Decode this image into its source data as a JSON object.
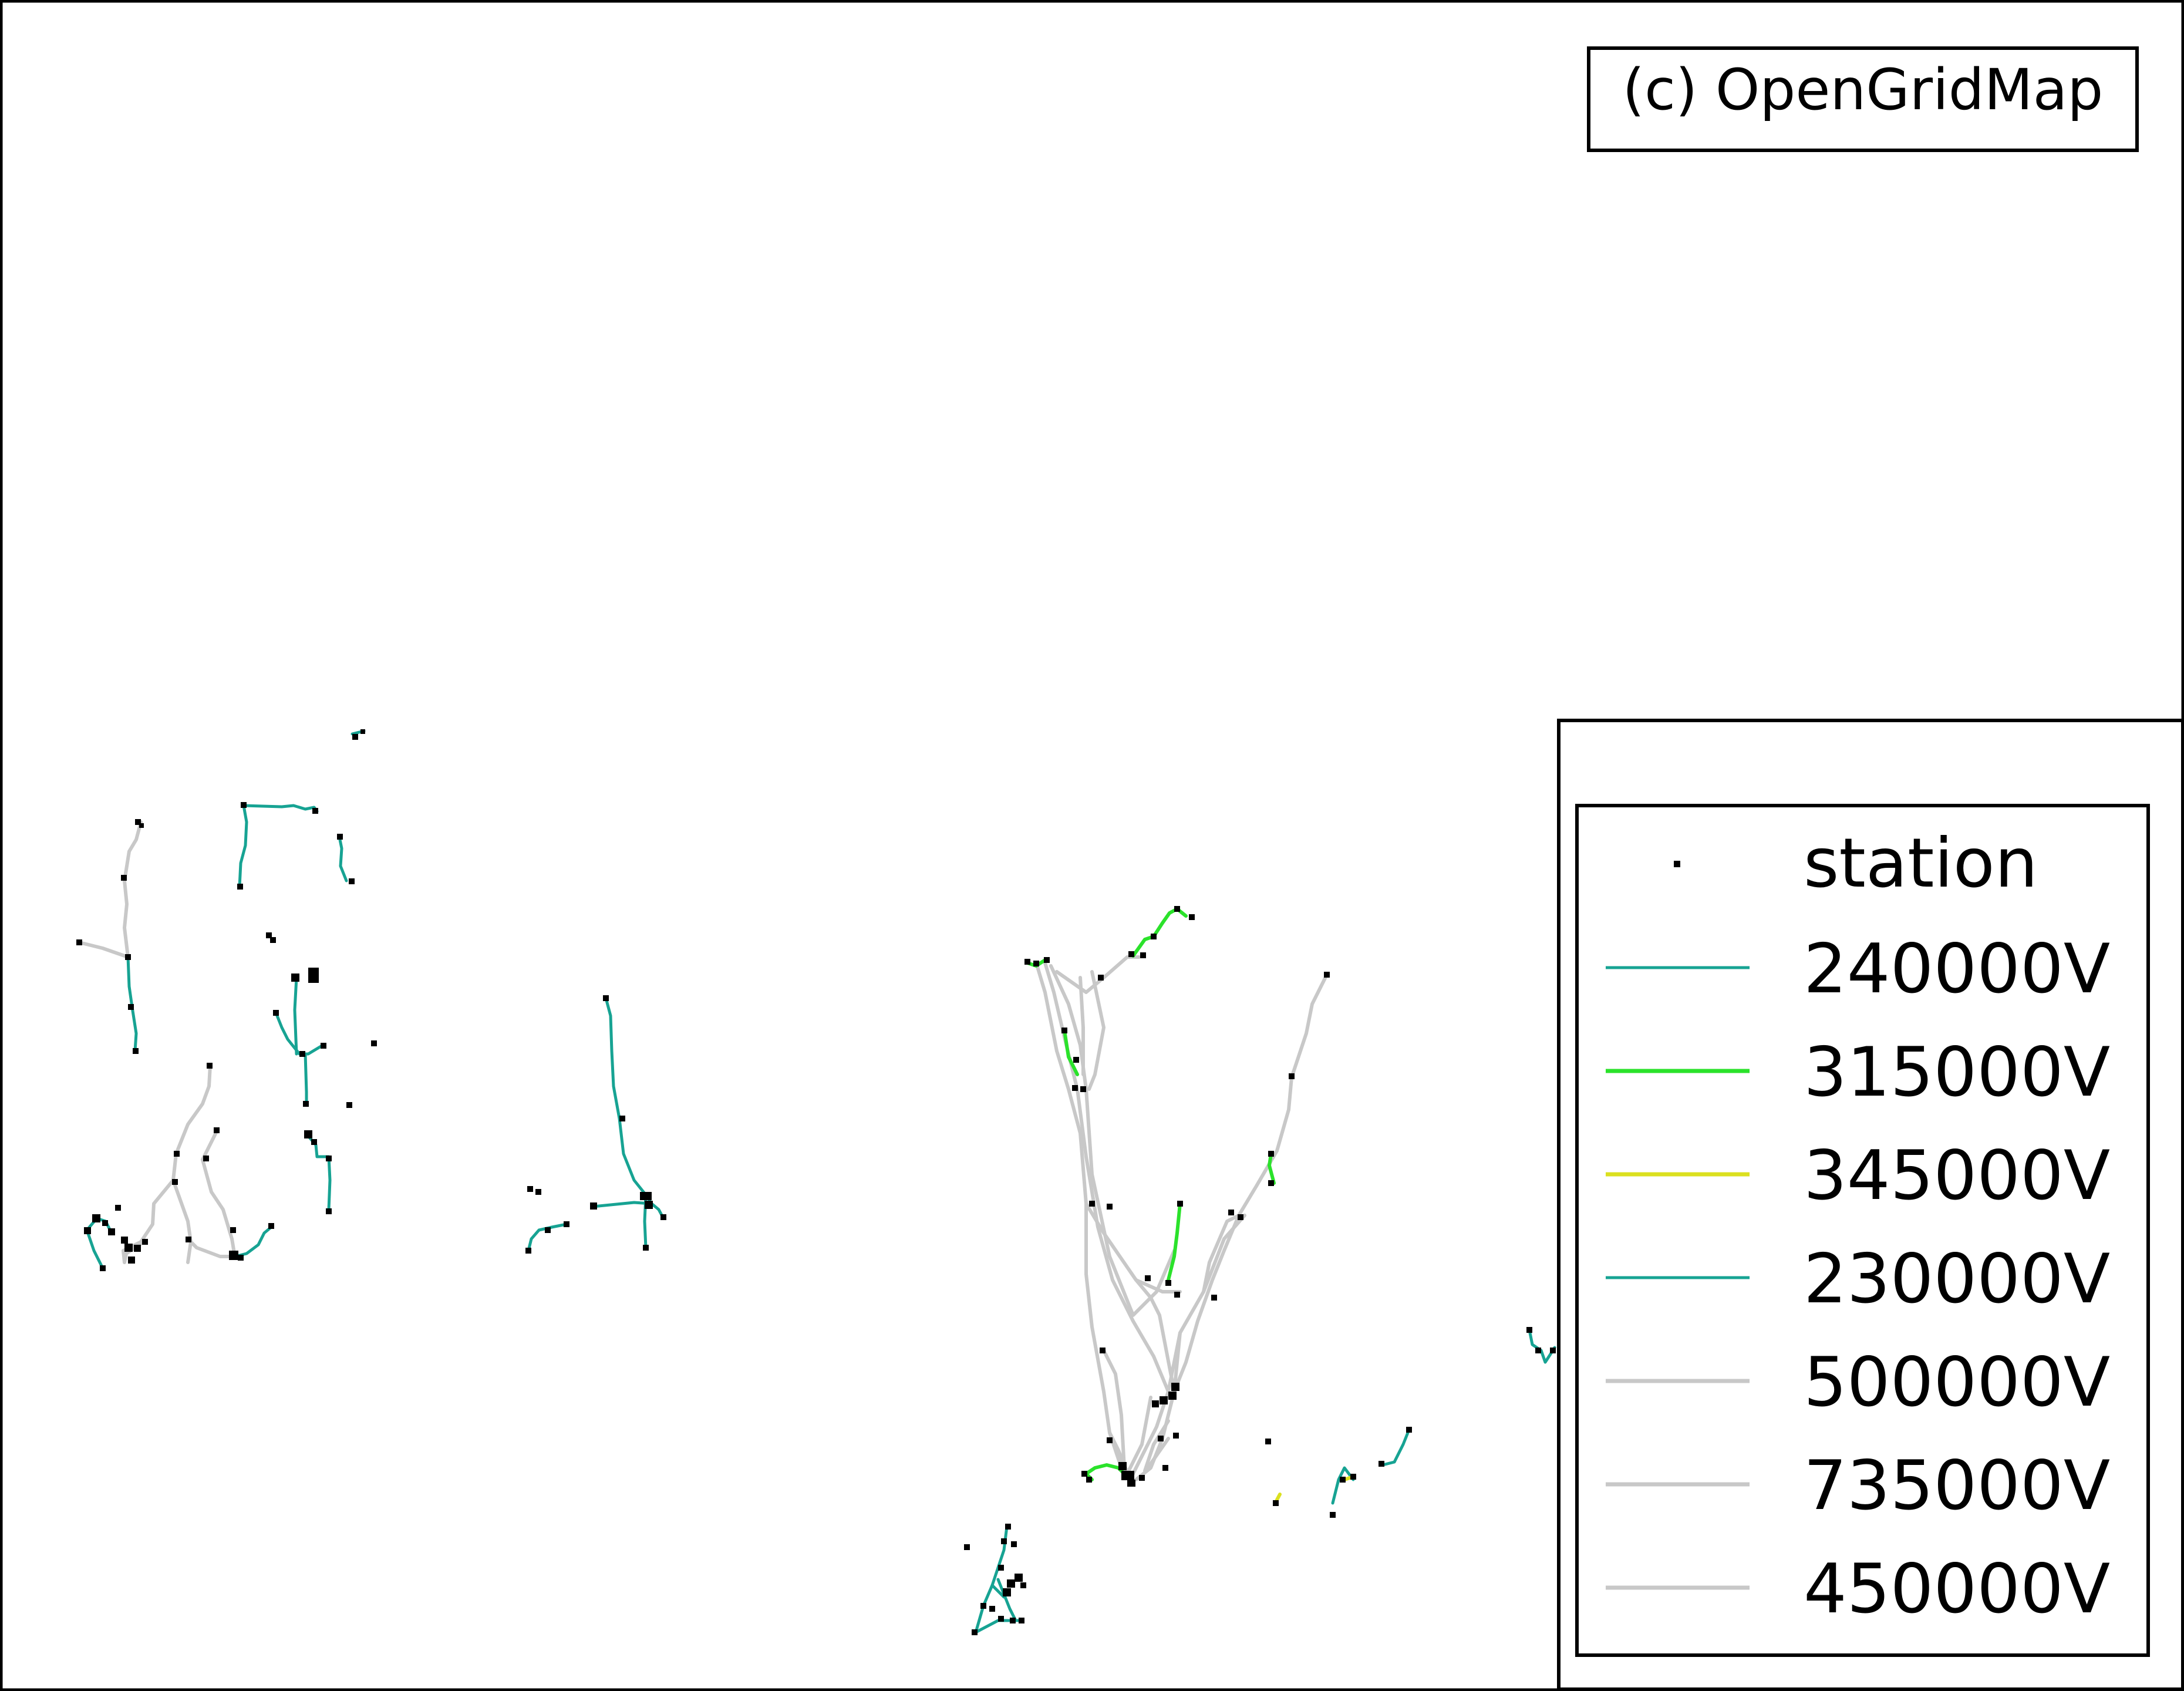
{
  "attribution": "(c) OpenGridMap",
  "legend": {
    "station_label": "station",
    "voltages": [
      {
        "label": "240000V",
        "color": "#17a393"
      },
      {
        "label": "315000V",
        "color": "#2be22b"
      },
      {
        "label": "345000V",
        "color": "#dbe01f"
      },
      {
        "label": "230000V",
        "color": "#17a393"
      },
      {
        "label": "500000V",
        "color": "#c8c8c8"
      },
      {
        "label": "735000V",
        "color": "#c8c8c8"
      },
      {
        "label": "450000V",
        "color": "#c8c8c8"
      }
    ]
  },
  "colors": {
    "station": "#000000",
    "frame": "#000000",
    "background": "#ffffff"
  }
}
